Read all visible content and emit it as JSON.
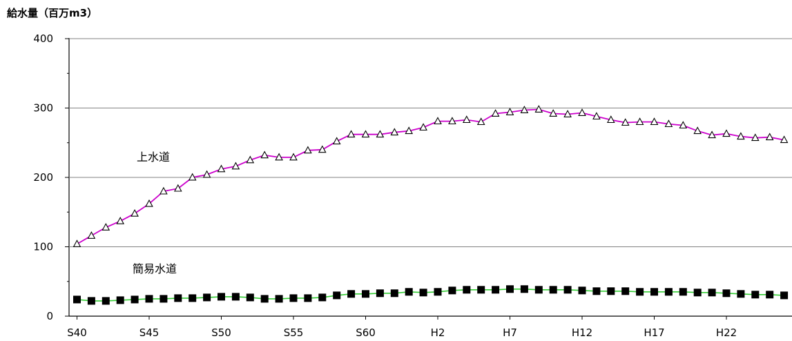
{
  "chart_data": {
    "type": "line",
    "ylabel": "給水量（百万m3）",
    "ylim": [
      0,
      400
    ],
    "yticks": [
      0,
      100,
      200,
      300,
      400
    ],
    "grid": true,
    "xtick_labels": [
      {
        "index": 0,
        "label": "S40"
      },
      {
        "index": 5,
        "label": "S45"
      },
      {
        "index": 10,
        "label": "S50"
      },
      {
        "index": 15,
        "label": "S55"
      },
      {
        "index": 20,
        "label": "S60"
      },
      {
        "index": 25,
        "label": "H2"
      },
      {
        "index": 30,
        "label": "H7"
      },
      {
        "index": 35,
        "label": "H12"
      },
      {
        "index": 40,
        "label": "H17"
      },
      {
        "index": 45,
        "label": "H22"
      }
    ],
    "series": [
      {
        "name": "上水道",
        "color": "#cc00cc",
        "marker": "triangle",
        "values": [
          104,
          116,
          128,
          137,
          148,
          162,
          180,
          184,
          200,
          204,
          212,
          216,
          225,
          232,
          229,
          229,
          239,
          240,
          252,
          262,
          262,
          262,
          265,
          267,
          272,
          281,
          281,
          283,
          280,
          292,
          294,
          297,
          298,
          292,
          291,
          293,
          288,
          283,
          279,
          280,
          280,
          277,
          275,
          267,
          261,
          263,
          259,
          257,
          258,
          254
        ]
      },
      {
        "name": "簡易水道",
        "color": "#33cc33",
        "marker": "square",
        "values": [
          24,
          22,
          22,
          23,
          24,
          25,
          25,
          26,
          26,
          27,
          28,
          28,
          27,
          25,
          25,
          26,
          26,
          27,
          30,
          32,
          32,
          33,
          33,
          35,
          34,
          35,
          37,
          38,
          38,
          38,
          39,
          39,
          38,
          38,
          38,
          37,
          36,
          36,
          36,
          35,
          35,
          35,
          35,
          34,
          34,
          33,
          32,
          31,
          31,
          30
        ]
      }
    ]
  }
}
